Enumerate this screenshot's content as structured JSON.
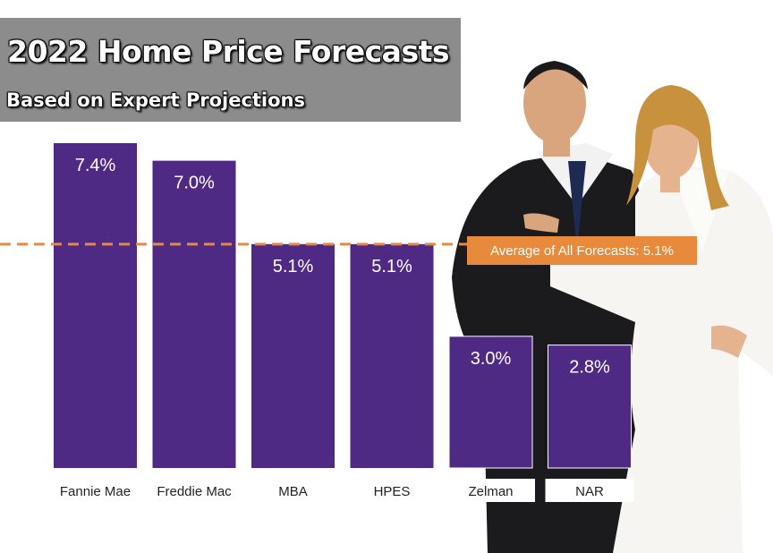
{
  "chart_data": {
    "type": "bar",
    "title": "2022 Home Price Forecasts",
    "subtitle": "Based on Expert Projections",
    "categories": [
      "Fannie Mae",
      "Freddie Mac",
      "MBA",
      "HPES",
      "Zelman",
      "NAR"
    ],
    "values": [
      7.4,
      7.0,
      5.1,
      5.1,
      3.0,
      2.8
    ],
    "value_labels": [
      "7.4%",
      "7.0%",
      "5.1%",
      "5.1%",
      "3.0%",
      "2.8%"
    ],
    "average": 5.1,
    "average_label": "Average of All Forecasts: 5.1%",
    "ylim": [
      0,
      7.4
    ],
    "xlabel": "",
    "ylabel": "",
    "grid": false,
    "legend": "none"
  },
  "colors": {
    "bar": "#4e2a84",
    "average_line": "#e88a3c",
    "title_box": "#8c8c8c"
  },
  "photo": {
    "icon": "business-couple-photo"
  }
}
